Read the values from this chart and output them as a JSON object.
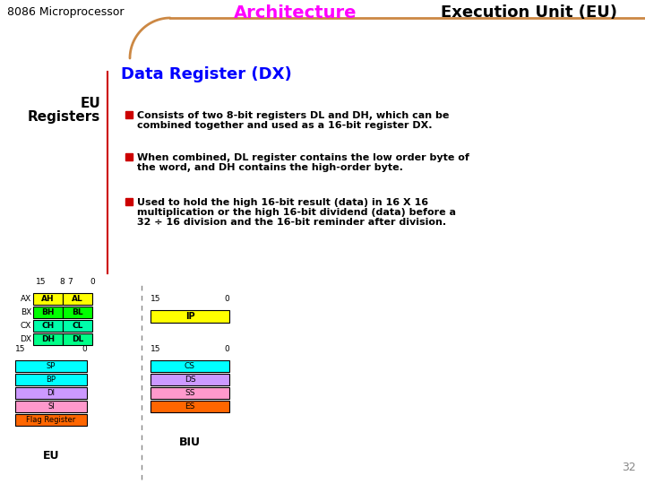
{
  "title_left": "8086 Microprocessor",
  "title_center": "Architecture",
  "title_right": "Execution Unit (EU)",
  "title_center_color": "#FF00FF",
  "title_right_color": "#000000",
  "title_left_color": "#000000",
  "bg_color": "#FFFFFF",
  "header_arc_color": "#CC8844",
  "eu_registers_label": "EU\nRegisters",
  "section_title": "Data Register (DX)",
  "section_title_color": "#0000FF",
  "bullet_color": "#CC0000",
  "bullet1_line1": "Consists of two 8-bit registers DL and DH, which can be",
  "bullet1_line2": "combined together and used as a 16-bit register DX.",
  "bullet2_line1": "When combined, DL register contains the low order byte of",
  "bullet2_line2": "the word, and DH contains the high-order byte.",
  "bullet3_line1": "Used to hold the high 16-bit result (data) in 16 X 16",
  "bullet3_line2": "multiplication or the high 16-bit dividend (data) before a",
  "bullet3_line3": "32 ÷ 16 division and the 16-bit reminder after division.",
  "ax_regs": [
    {
      "label": "AH",
      "color": "#FFFF00"
    },
    {
      "label": "BH",
      "color": "#00FF00"
    },
    {
      "label": "CH",
      "color": "#00FFAA"
    },
    {
      "label": "DH",
      "color": "#00FF88"
    }
  ],
  "al_regs": [
    {
      "label": "AL",
      "color": "#FFFF00"
    },
    {
      "label": "BL",
      "color": "#00FF00"
    },
    {
      "label": "CL",
      "color": "#00FFAA"
    },
    {
      "label": "DL",
      "color": "#00FF88"
    }
  ],
  "ax_row_labels": [
    "AX",
    "BX",
    "CX",
    "DX"
  ],
  "pointer_regs": [
    {
      "label": "SP",
      "color": "#00FFFF"
    },
    {
      "label": "BP",
      "color": "#00FFFF"
    },
    {
      "label": "DI",
      "color": "#CC99FF"
    },
    {
      "label": "SI",
      "color": "#FF99CC"
    },
    {
      "label": "Flag Register",
      "color": "#FF6600"
    }
  ],
  "ip_reg": {
    "label": "IP",
    "color": "#FFFF00"
  },
  "segment_regs": [
    {
      "label": "CS",
      "color": "#00FFFF"
    },
    {
      "label": "DS",
      "color": "#CC99FF"
    },
    {
      "label": "SS",
      "color": "#FF99CC"
    },
    {
      "label": "ES",
      "color": "#FF6600"
    }
  ],
  "eu_label": "EU",
  "biu_label": "BIU",
  "page_number": "32",
  "vertical_line_color": "#CC0000",
  "dashed_line_color": "#888888",
  "text_color": "#000000",
  "bold_text": true
}
